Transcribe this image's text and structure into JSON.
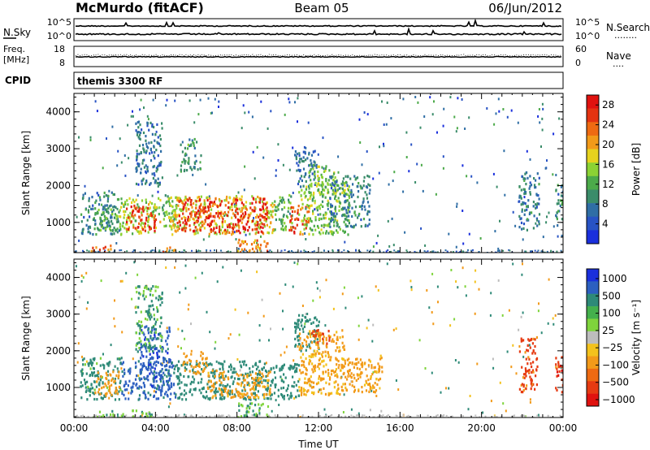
{
  "header": {
    "station": "McMurdo (fitACF)",
    "beam": "Beam 05",
    "date": "06/Jun/2012"
  },
  "strip_noise": {
    "left_label": "N.Sky",
    "right_label": "N.Search",
    "right_dots": "........",
    "left_ticks": [
      "10^5",
      "10^0"
    ],
    "right_ticks": [
      "10^5",
      "10^0"
    ]
  },
  "strip_freq": {
    "left_label_1": "Freq.",
    "left_label_2": "[MHz]",
    "right_label": "Nave",
    "right_dots": "....",
    "left_ticks": [
      "18",
      "8"
    ],
    "right_ticks": [
      "60",
      "0"
    ]
  },
  "cpid": {
    "label": "CPID",
    "value": "themis 3300 RF"
  },
  "colors": {
    "power": [
      "#1a2fdc",
      "#2853c4",
      "#2f6ea5",
      "#3a8c6a",
      "#4caa4a",
      "#8bd234",
      "#e6d21e",
      "#f29a19",
      "#ee6a12",
      "#e43311",
      "#e0120f"
    ],
    "velocity": [
      "#e0120f",
      "#e63a12",
      "#ee6a12",
      "#f29a19",
      "#f3c21c",
      "#bdbdbd",
      "#7fd43c",
      "#44b04c",
      "#2e8a78",
      "#2c5fc0",
      "#1a2fdc"
    ]
  },
  "chart_data": [
    {
      "type": "heatmap",
      "title": "",
      "xlabel": "",
      "ylabel": "Slant Range [km]",
      "xlim": [
        "00:00",
        "24:00"
      ],
      "ylim": [
        180,
        4500
      ],
      "yticks": [
        1000,
        2000,
        3000,
        4000
      ],
      "colorbar": {
        "label": "Power [dB]",
        "ticks": [
          4,
          8,
          12,
          16,
          20,
          24,
          28
        ],
        "range": [
          0,
          30
        ]
      },
      "regions": [
        {
          "t0": 0.3,
          "t1": 2.2,
          "r0": 700,
          "r1": 1850,
          "value": 8
        },
        {
          "t0": 1.0,
          "t1": 2.1,
          "r0": 800,
          "r1": 1500,
          "value": 12
        },
        {
          "t0": 2.2,
          "t1": 4.2,
          "r0": 700,
          "r1": 1700,
          "value": 16
        },
        {
          "t0": 2.5,
          "t1": 4.0,
          "r0": 800,
          "r1": 1500,
          "value": 27
        },
        {
          "t0": 3.0,
          "t1": 4.3,
          "r0": 2000,
          "r1": 3800,
          "value": 6
        },
        {
          "t0": 4.3,
          "t1": 5.0,
          "r0": 900,
          "r1": 1800,
          "value": 12
        },
        {
          "t0": 4.6,
          "t1": 9.8,
          "r0": 700,
          "r1": 1750,
          "value": 18
        },
        {
          "t0": 5.0,
          "t1": 9.5,
          "r0": 750,
          "r1": 1700,
          "value": 28
        },
        {
          "t0": 5.2,
          "t1": 6.2,
          "r0": 2400,
          "r1": 3300,
          "value": 10
        },
        {
          "t0": 9.8,
          "t1": 10.7,
          "r0": 800,
          "r1": 1800,
          "value": 12
        },
        {
          "t0": 10.5,
          "t1": 11.5,
          "r0": 700,
          "r1": 1500,
          "value": 26
        },
        {
          "t0": 10.8,
          "t1": 12.0,
          "r0": 2000,
          "r1": 3000,
          "value": 6
        },
        {
          "t0": 11.0,
          "t1": 13.5,
          "r0": 700,
          "r1": 2100,
          "value": 14
        },
        {
          "t0": 11.5,
          "t1": 12.8,
          "r0": 1800,
          "r1": 2600,
          "value": 14
        },
        {
          "t0": 12.5,
          "t1": 14.5,
          "r0": 900,
          "r1": 2300,
          "value": 8
        },
        {
          "t0": 21.8,
          "t1": 22.8,
          "r0": 800,
          "r1": 2400,
          "value": 7
        },
        {
          "t0": 23.6,
          "t1": 24.0,
          "r0": 900,
          "r1": 2100,
          "value": 8
        },
        {
          "t0": 0.8,
          "t1": 2.0,
          "r0": 180,
          "r1": 400,
          "value": 24
        },
        {
          "t0": 4.3,
          "t1": 5.0,
          "r0": 180,
          "r1": 350,
          "value": 24
        },
        {
          "t0": 8.0,
          "t1": 9.5,
          "r0": 180,
          "r1": 600,
          "value": 22
        }
      ]
    },
    {
      "type": "heatmap",
      "title": "",
      "xlabel": "Time UT",
      "ylabel": "Slant Range [km]",
      "xlim": [
        "00:00",
        "24:00"
      ],
      "ylim": [
        180,
        4500
      ],
      "xticks": [
        "00:00",
        "04:00",
        "08:00",
        "12:00",
        "16:00",
        "20:00",
        "00:00"
      ],
      "yticks": [
        1000,
        2000,
        3000,
        4000
      ],
      "colorbar": {
        "label": "Velocity [m s⁻¹]",
        "ticks": [
          "1000",
          "500",
          "100",
          "25",
          "−25",
          "−100",
          "−500",
          "−1000"
        ],
        "range": [
          -1000,
          1000
        ]
      },
      "regions": [
        {
          "t0": 0.3,
          "t1": 2.3,
          "r0": 700,
          "r1": 1850,
          "value": 150
        },
        {
          "t0": 1.0,
          "t1": 2.2,
          "r0": 800,
          "r1": 1500,
          "value": -300
        },
        {
          "t0": 2.3,
          "t1": 5.0,
          "r0": 700,
          "r1": 1750,
          "value": 700
        },
        {
          "t0": 3.2,
          "t1": 4.7,
          "r0": 1000,
          "r1": 2700,
          "value": 800
        },
        {
          "t0": 3.0,
          "t1": 4.3,
          "r0": 2000,
          "r1": 3800,
          "value": 120
        },
        {
          "t0": 5.0,
          "t1": 9.8,
          "r0": 700,
          "r1": 1750,
          "value": 300
        },
        {
          "t0": 5.3,
          "t1": 6.5,
          "r0": 1400,
          "r1": 2000,
          "value": -300
        },
        {
          "t0": 6.5,
          "t1": 9.6,
          "r0": 750,
          "r1": 1500,
          "value": -150
        },
        {
          "t0": 9.8,
          "t1": 11.0,
          "r0": 700,
          "r1": 1700,
          "value": 300
        },
        {
          "t0": 10.8,
          "t1": 12.0,
          "r0": 2000,
          "r1": 3000,
          "value": 300
        },
        {
          "t0": 11.0,
          "t1": 13.3,
          "r0": 800,
          "r1": 2600,
          "value": -120
        },
        {
          "t0": 11.5,
          "t1": 12.5,
          "r0": 2200,
          "r1": 2600,
          "value": -500
        },
        {
          "t0": 13.0,
          "t1": 15.1,
          "r0": 900,
          "r1": 1900,
          "value": -150
        },
        {
          "t0": 21.8,
          "t1": 22.7,
          "r0": 900,
          "r1": 2400,
          "value": -700
        },
        {
          "t0": 23.6,
          "t1": 24.0,
          "r0": 900,
          "r1": 1900,
          "value": -800
        },
        {
          "t0": 0.8,
          "t1": 4.0,
          "r0": 180,
          "r1": 400,
          "value": 80
        },
        {
          "t0": 8.0,
          "t1": 9.5,
          "r0": 180,
          "r1": 600,
          "value": 90
        }
      ]
    }
  ]
}
